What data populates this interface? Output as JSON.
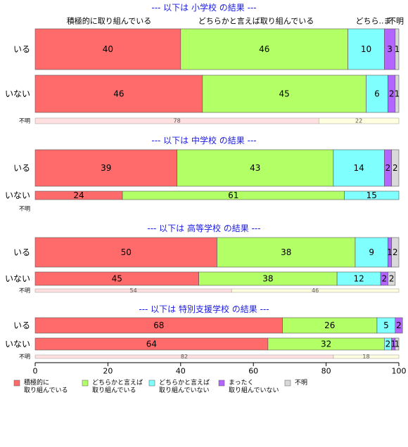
{
  "chart_data": {
    "type": "bar",
    "orientation": "horizontal",
    "stacked": true,
    "xlim": [
      0,
      100
    ],
    "xticks": [
      0,
      20,
      40,
      60,
      80,
      100
    ],
    "grid": false,
    "legend_position": "bottom",
    "series": [
      {
        "name": "積極的に\n取り組んでいる",
        "color": "#ff6b6b"
      },
      {
        "name": "どちらかと言えば\n取り組んでいる",
        "color": "#b3ff66"
      },
      {
        "name": "どちらかと言えば\n取り組んでいない",
        "color": "#80ffff"
      },
      {
        "name": "まったく\n取り組んでいない",
        "color": "#b366ff"
      },
      {
        "name": "不明",
        "color": "#d9d9d9"
      }
    ],
    "top_headers": [
      "積極的に取り組んでいる",
      "どちらかと言えば取り組んでいる",
      "どちら..ま",
      "不明"
    ],
    "panels": [
      {
        "title": "--- 以下は 小学校 の結果 ---",
        "rows": [
          {
            "label": "いる",
            "values": [
              40,
              46,
              10,
              3,
              1
            ]
          },
          {
            "label": "いない",
            "values": [
              46,
              45,
              6,
              2,
              1
            ]
          }
        ],
        "unknown": {
          "label": "不明",
          "values": [
            78,
            22
          ]
        }
      },
      {
        "title": "--- 以下は 中学校 の結果 ---",
        "rows": [
          {
            "label": "いる",
            "values": [
              39,
              43,
              14,
              2,
              2
            ]
          },
          {
            "label": "いない",
            "values": [
              24,
              61,
              15,
              0,
              0
            ]
          }
        ],
        "unknown": {
          "label": "不明",
          "values": []
        }
      },
      {
        "title": "--- 以下は 高等学校 の結果 ---",
        "rows": [
          {
            "label": "いる",
            "values": [
              50,
              38,
              9,
              1,
              2
            ]
          },
          {
            "label": "いない",
            "values": [
              45,
              38,
              12,
              2,
              2
            ]
          }
        ],
        "unknown": {
          "label": "不明",
          "values": [
            54,
            46
          ]
        }
      },
      {
        "title": "--- 以下は 特別支援学校 の結果 ---",
        "rows": [
          {
            "label": "いる",
            "values": [
              68,
              26,
              5,
              2,
              0
            ]
          },
          {
            "label": "いない",
            "values": [
              64,
              32,
              2,
              1,
              1
            ]
          }
        ],
        "unknown": {
          "label": "不明",
          "values": [
            82,
            18
          ]
        }
      }
    ]
  }
}
